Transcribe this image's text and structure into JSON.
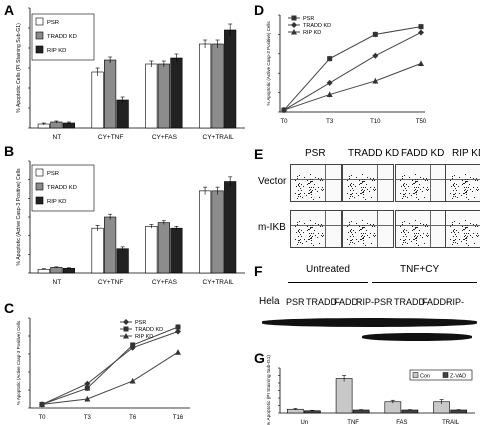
{
  "panels": {
    "A": "A",
    "B": "B",
    "C": "C",
    "D": "D",
    "E": "E",
    "F": "F",
    "G": "G"
  },
  "chart_data": [
    {
      "id": "A",
      "type": "bar",
      "ylabel": "% Apoptotic Cells (PI Staining Sub-G1)",
      "ylim": [
        0,
        60
      ],
      "categories": [
        "NT",
        "CY+TNF",
        "CY+FAS",
        "CY+TRAIL"
      ],
      "series": [
        {
          "name": "PSR",
          "values": [
            2,
            28,
            32,
            42
          ],
          "errors": [
            0.5,
            2,
            1.5,
            2
          ],
          "color": "#ffffff"
        },
        {
          "name": "TRADD KD",
          "values": [
            3,
            34,
            32,
            42
          ],
          "errors": [
            0.5,
            1.5,
            1.5,
            2
          ],
          "color": "#8c8c8c"
        },
        {
          "name": "RIP KD",
          "values": [
            2.5,
            14,
            35,
            49
          ],
          "errors": [
            0.5,
            1.5,
            2,
            3
          ],
          "color": "#222222"
        }
      ],
      "legend": "top-left"
    },
    {
      "id": "B",
      "type": "bar",
      "ylabel": "% Apoptotic (Active Casp-3 Positive) Cells",
      "ylim": [
        0,
        60
      ],
      "categories": [
        "NT",
        "CY+TNF",
        "CY+FAS",
        "CY+TRAIL"
      ],
      "series": [
        {
          "name": "PSR",
          "values": [
            2,
            24,
            25,
            44
          ],
          "errors": [
            0.3,
            1.5,
            1,
            2
          ],
          "color": "#ffffff"
        },
        {
          "name": "TRADD KD",
          "values": [
            3,
            30,
            27,
            44
          ],
          "errors": [
            0.3,
            1.5,
            1,
            2
          ],
          "color": "#8c8c8c"
        },
        {
          "name": "RIP KD",
          "values": [
            2.5,
            13,
            24,
            49
          ],
          "errors": [
            0.3,
            1,
            1,
            2.5
          ],
          "color": "#222222"
        }
      ],
      "legend": "top-left"
    },
    {
      "id": "C",
      "type": "line",
      "ylabel": "% Apoptotic (Active Casp-3 Positive) Cells",
      "ylim": [
        0,
        100
      ],
      "categories": [
        "T0",
        "T3",
        "T6",
        "T16"
      ],
      "series": [
        {
          "name": "PSR",
          "values": [
            4,
            27,
            67,
            85
          ],
          "marker": "diamond"
        },
        {
          "name": "TRADD KD",
          "values": [
            4,
            22,
            70,
            90
          ],
          "marker": "square"
        },
        {
          "name": "RIP KD",
          "values": [
            4,
            10,
            30,
            62
          ],
          "marker": "triangle"
        }
      ],
      "legend": "top-left"
    },
    {
      "id": "D",
      "type": "line",
      "ylabel": "% Apoptotic (Active Casp-3 Positive) Cells",
      "ylim": [
        0,
        100
      ],
      "categories": [
        "T0",
        "T3",
        "T10",
        "T50"
      ],
      "series": [
        {
          "name": "PSR",
          "values": [
            2,
            55,
            80,
            88
          ],
          "marker": "square"
        },
        {
          "name": "TRADD KD",
          "values": [
            2,
            30,
            58,
            82
          ],
          "marker": "diamond"
        },
        {
          "name": "RIP KD",
          "values": [
            2,
            18,
            32,
            50
          ],
          "marker": "triangle"
        }
      ],
      "legend": "top-left"
    },
    {
      "id": "G",
      "type": "bar",
      "ylabel": "% Apoptotic (PI Staining Sub-G1)",
      "ylim": [
        0,
        60
      ],
      "categories": [
        "Un",
        "TNF",
        "FAS",
        "TRAIL"
      ],
      "series": [
        {
          "name": "Con",
          "values": [
            5,
            46,
            15,
            15
          ],
          "errors": [
            1,
            4,
            2,
            3
          ],
          "color": "#c8c8c8"
        },
        {
          "name": "Z-VAD",
          "values": [
            3,
            4,
            4,
            4
          ],
          "errors": [
            0.5,
            0.5,
            0.5,
            0.5
          ],
          "color": "#444444"
        }
      ],
      "legend": "top-right"
    }
  ],
  "panel_E": {
    "columns": [
      "PSR",
      "TRADD KD",
      "FADD KD",
      "RIP KD"
    ],
    "rows": [
      "Vector",
      "m-IKB"
    ]
  },
  "panel_F": {
    "groups": [
      "Untreated",
      "TNF+CY"
    ],
    "cell_line": "Hela",
    "lanes": [
      "PSR",
      "TRADD-",
      "FADD-",
      "RIP-",
      "PSR",
      "TRADD-",
      "FADD-",
      "RIP-"
    ]
  }
}
